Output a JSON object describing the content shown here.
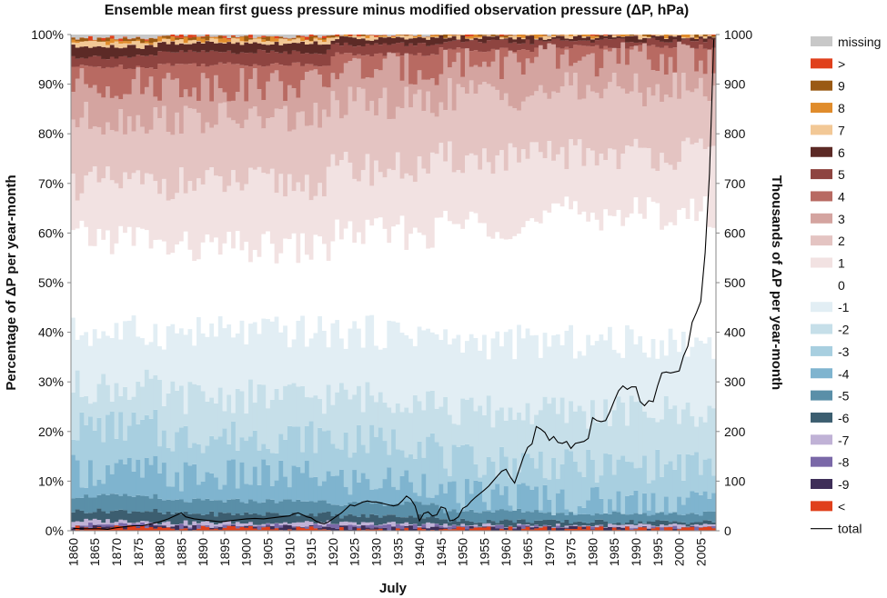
{
  "chart_data": {
    "type": "bar",
    "stacked": true,
    "secondary_type": "line",
    "title": "Ensemble mean first guess pressure minus modified observation pressure (ΔP, hPa)",
    "xlabel": "July",
    "ylabel": "Percentage of ΔP per year-month",
    "y2label": "Thousands of ΔP per year-month",
    "x_start": 1860,
    "x_end": 2008,
    "xticks": [
      "1860",
      "1865",
      "1870",
      "1875",
      "1880",
      "1885",
      "1890",
      "1895",
      "1900",
      "1905",
      "1910",
      "1915",
      "1920",
      "1925",
      "1930",
      "1935",
      "1940",
      "1945",
      "1950",
      "1955",
      "1960",
      "1965",
      "1970",
      "1975",
      "1980",
      "1985",
      "1990",
      "1995",
      "2000",
      "2005"
    ],
    "ylim": [
      0,
      100
    ],
    "yticks": [
      "0%",
      "10%",
      "20%",
      "30%",
      "40%",
      "50%",
      "60%",
      "70%",
      "80%",
      "90%",
      "100%"
    ],
    "y2lim": [
      0,
      1000
    ],
    "y2ticks": [
      "0",
      "100",
      "200",
      "300",
      "400",
      "500",
      "600",
      "700",
      "800",
      "900",
      "1000"
    ],
    "legend_position": "right",
    "categories_bottom_to_top": [
      "<",
      "-9",
      "-8",
      "-7",
      "-6",
      "-5",
      "-4",
      "-3",
      "-2",
      "-1",
      "0",
      "1",
      "2",
      "3",
      "4",
      "5",
      "6",
      "7",
      "8",
      "9",
      ">",
      "missing"
    ],
    "legend": [
      {
        "label": "missing",
        "color": "#c8c8c8"
      },
      {
        "label": ">",
        "color": "#e0401c"
      },
      {
        "label": "9",
        "color": "#9a5a14"
      },
      {
        "label": "8",
        "color": "#e08c2c"
      },
      {
        "label": "7",
        "color": "#f2c896"
      },
      {
        "label": "6",
        "color": "#5c2a26"
      },
      {
        "label": "5",
        "color": "#8e4440"
      },
      {
        "label": "4",
        "color": "#b86a62"
      },
      {
        "label": "3",
        "color": "#d4a4a0"
      },
      {
        "label": "2",
        "color": "#e4c4c2"
      },
      {
        "label": "1",
        "color": "#f2e2e2"
      },
      {
        "label": "0",
        "color": "#ffffff"
      },
      {
        "label": "-1",
        "color": "#e2eef4"
      },
      {
        "label": "-2",
        "color": "#c6dfe9"
      },
      {
        "label": "-3",
        "color": "#a8cfe0"
      },
      {
        "label": "-4",
        "color": "#7fb4cf"
      },
      {
        "label": "-5",
        "color": "#5a8fa8"
      },
      {
        "label": "-6",
        "color": "#3c5e70"
      },
      {
        "label": "-7",
        "color": "#c0b2d6"
      },
      {
        "label": "-8",
        "color": "#7a68a8"
      },
      {
        "label": "-9",
        "color": "#3e2e58"
      },
      {
        "label": "<",
        "color": "#e0401c"
      },
      {
        "label": "total",
        "color": "#000000"
      }
    ],
    "boundary_keys": [
      "<",
      "-9",
      "-8",
      "-7",
      "-6",
      "-5",
      "-4",
      "-3",
      "-2",
      "-1",
      "0",
      "1",
      "2",
      "3",
      "4",
      "5",
      "6",
      "7",
      "8",
      "9",
      ">"
    ],
    "boundary_notes": "cumulative percentage at the top of each category, averaged by period",
    "boundaries_by_period": [
      {
        "period": "1860-1879",
        "tops": [
          0.6,
          0.8,
          1.2,
          2.0,
          4.0,
          7.0,
          12.0,
          21.0,
          29.0,
          40.0,
          59.0,
          70.0,
          83.0,
          90.0,
          93.5,
          95.5,
          97.5,
          98.2,
          98.7,
          99.0,
          99.4
        ]
      },
      {
        "period": "1880-1919",
        "tops": [
          0.5,
          0.7,
          1.0,
          1.6,
          3.4,
          6.0,
          11.0,
          19.0,
          27.0,
          40.0,
          57.0,
          70.0,
          83.0,
          90.0,
          94.0,
          96.5,
          98.3,
          98.8,
          99.1,
          99.3,
          99.6
        ]
      },
      {
        "period": "1920-1944",
        "tops": [
          0.4,
          0.6,
          0.9,
          1.4,
          3.0,
          5.5,
          10.0,
          18.0,
          27.0,
          40.0,
          60.0,
          73.0,
          86.0,
          93.0,
          96.0,
          98.0,
          99.2,
          99.4,
          99.6,
          99.7,
          99.8
        ]
      },
      {
        "period": "1945-1969",
        "tops": [
          0.4,
          0.5,
          0.7,
          1.0,
          2.0,
          4.0,
          7.0,
          14.0,
          24.0,
          38.0,
          62.0,
          75.0,
          88.0,
          94.5,
          97.0,
          98.5,
          99.4,
          99.6,
          99.7,
          99.8,
          99.9
        ]
      },
      {
        "period": "1970-2008",
        "tops": [
          0.4,
          0.5,
          0.7,
          1.0,
          1.8,
          3.5,
          6.0,
          13.0,
          24.0,
          38.0,
          64.0,
          76.0,
          89.0,
          95.0,
          97.5,
          98.8,
          99.5,
          99.6,
          99.7,
          99.8,
          99.9
        ]
      }
    ],
    "total_series": {
      "name": "total",
      "x": [
        1860,
        1862,
        1864,
        1866,
        1868,
        1870,
        1872,
        1874,
        1876,
        1878,
        1880,
        1882,
        1884,
        1885,
        1886,
        1888,
        1890,
        1892,
        1894,
        1896,
        1898,
        1900,
        1902,
        1904,
        1906,
        1908,
        1910,
        1911,
        1912,
        1913,
        1914,
        1915,
        1916,
        1917,
        1918,
        1919,
        1920,
        1921,
        1922,
        1923,
        1924,
        1925,
        1926,
        1927,
        1928,
        1929,
        1930,
        1931,
        1932,
        1933,
        1934,
        1935,
        1936,
        1937,
        1938,
        1939,
        1940,
        1941,
        1942,
        1943,
        1944,
        1945,
        1946,
        1947,
        1948,
        1949,
        1950,
        1951,
        1952,
        1953,
        1954,
        1955,
        1956,
        1957,
        1958,
        1959,
        1960,
        1961,
        1962,
        1963,
        1964,
        1965,
        1966,
        1967,
        1968,
        1969,
        1970,
        1971,
        1972,
        1973,
        1974,
        1975,
        1976,
        1977,
        1978,
        1979,
        1980,
        1981,
        1982,
        1983,
        1984,
        1985,
        1986,
        1987,
        1988,
        1989,
        1990,
        1991,
        1992,
        1993,
        1994,
        1995,
        1996,
        1997,
        1998,
        1999,
        2000,
        2001,
        2002,
        2003,
        2004,
        2005,
        2006,
        2007,
        2008
      ],
      "values": [
        5,
        4,
        4,
        4,
        3,
        6,
        8,
        10,
        10,
        14,
        18,
        24,
        32,
        36,
        28,
        24,
        22,
        20,
        18,
        20,
        22,
        24,
        25,
        24,
        26,
        28,
        30,
        34,
        36,
        32,
        28,
        26,
        20,
        16,
        14,
        18,
        24,
        30,
        36,
        44,
        52,
        50,
        54,
        58,
        60,
        58,
        58,
        56,
        54,
        52,
        50,
        52,
        60,
        70,
        64,
        50,
        20,
        35,
        38,
        30,
        32,
        48,
        45,
        20,
        22,
        28,
        45,
        50,
        60,
        68,
        75,
        82,
        90,
        100,
        110,
        120,
        124,
        108,
        96,
        122,
        148,
        168,
        175,
        210,
        205,
        198,
        182,
        190,
        178,
        176,
        180,
        166,
        176,
        178,
        180,
        186,
        228,
        222,
        220,
        222,
        240,
        262,
        282,
        292,
        285,
        290,
        290,
        260,
        252,
        262,
        260,
        292,
        318,
        320,
        318,
        320,
        322,
        352,
        372,
        420,
        440,
        462,
        560,
        720,
        990
      ]
    }
  }
}
